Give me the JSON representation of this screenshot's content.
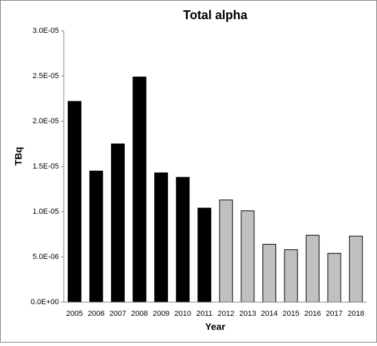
{
  "chart_data": {
    "type": "bar",
    "title": "Total alpha",
    "x_label": "Year",
    "y_label": "TBq",
    "categories": [
      "2005",
      "2006",
      "2007",
      "2008",
      "2009",
      "2010",
      "2011",
      "2012",
      "2013",
      "2014",
      "2015",
      "2016",
      "2017",
      "2018"
    ],
    "values": [
      2.22e-05,
      1.45e-05,
      1.75e-05,
      2.49e-05,
      1.43e-05,
      1.38e-05,
      1.04e-05,
      1.13e-05,
      1.01e-05,
      6.4e-06,
      5.8e-06,
      7.4e-06,
      5.4e-06,
      7.3e-06
    ],
    "colors": [
      "#000000",
      "#000000",
      "#000000",
      "#000000",
      "#000000",
      "#000000",
      "#000000",
      "#c0c0c0",
      "#c0c0c0",
      "#c0c0c0",
      "#c0c0c0",
      "#c0c0c0",
      "#c0c0c0",
      "#c0c0c0"
    ],
    "ylim": [
      0,
      3e-05
    ],
    "yticks": [
      {
        "value": 0,
        "label": "0.0E+00"
      },
      {
        "value": 5e-06,
        "label": "5.0E-06"
      },
      {
        "value": 1e-05,
        "label": "1.0E-05"
      },
      {
        "value": 1.5e-05,
        "label": "1.5E-05"
      },
      {
        "value": 2e-05,
        "label": "2.0E-05"
      },
      {
        "value": 2.5e-05,
        "label": "2.5E-05"
      },
      {
        "value": 3e-05,
        "label": "3.0E-05"
      }
    ],
    "grid": false
  }
}
